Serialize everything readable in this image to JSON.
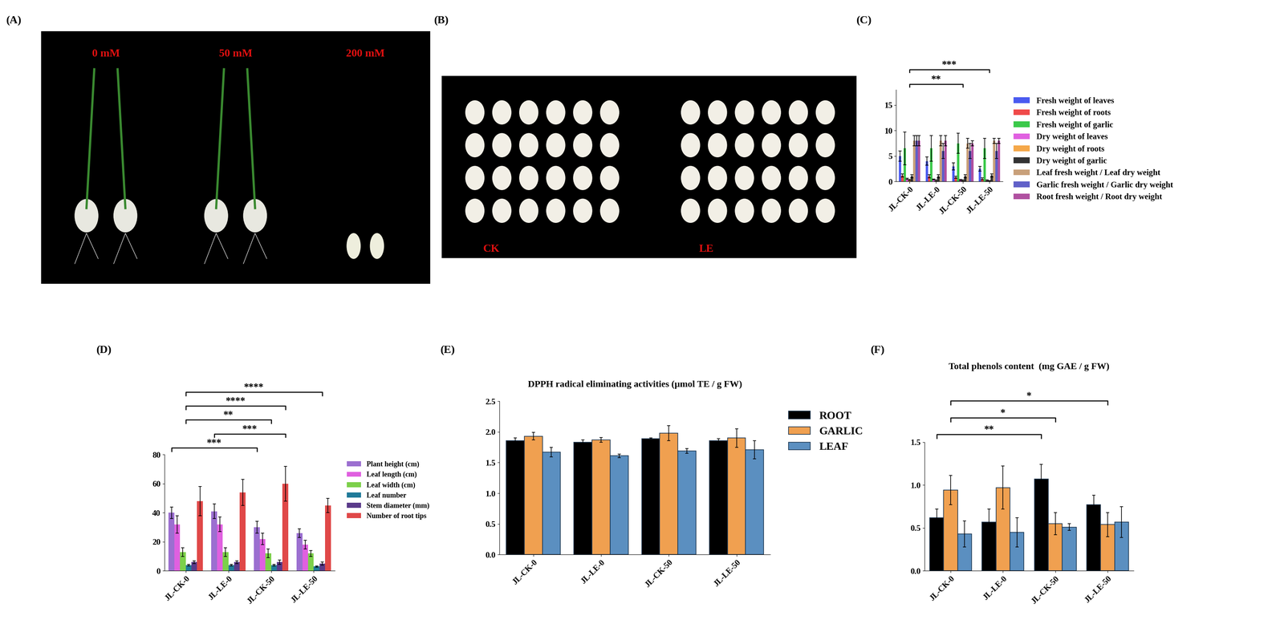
{
  "photos": [
    {
      "panel": "(A)",
      "labels": [
        "0 mM",
        "50 mM",
        "200 mM"
      ]
    },
    {
      "panel": "(B)",
      "labels": [
        "CK",
        "LE"
      ]
    }
  ],
  "chart_data": [
    {
      "panel": "(C)",
      "type": "bar",
      "grid": false,
      "legend": "outside right",
      "categories": [
        "JL-CK-0",
        "JL-LE-0",
        "JL-CK-50",
        "JL-LE-50"
      ],
      "ylim": [
        0,
        18
      ],
      "yticks": [
        0,
        5,
        10,
        15
      ],
      "series": [
        {
          "name": "Fresh weight of leaves",
          "color": "#4b5bf0",
          "values": [
            5,
            4,
            3,
            2.5
          ],
          "errors": [
            1,
            0.8,
            0.7,
            0.5
          ]
        },
        {
          "name": "Fresh weight of roots",
          "color": "#f04a4a",
          "values": [
            1.2,
            1,
            0.8,
            0.5
          ],
          "errors": [
            0.3,
            0.3,
            0.2,
            0.2
          ]
        },
        {
          "name": "Fresh weight of garlic",
          "color": "#3bc94a",
          "values": [
            6.5,
            6.5,
            7.5,
            6.5
          ],
          "errors": [
            3.2,
            2.5,
            2,
            2
          ]
        },
        {
          "name": "Dry weight of leaves",
          "color": "#e060e0",
          "values": [
            0.5,
            0.4,
            0.3,
            0.2
          ],
          "errors": [
            0.1,
            0.1,
            0.1,
            0.1
          ]
        },
        {
          "name": "Dry weight of roots",
          "color": "#f5a84a",
          "values": [
            0.3,
            0.2,
            0.2,
            0.1
          ],
          "errors": [
            0.1,
            0.1,
            0.1,
            0.05
          ]
        },
        {
          "name": "Dry weight of garlic",
          "color": "#333333",
          "values": [
            1,
            1,
            1,
            1.2
          ],
          "errors": [
            0.3,
            0.3,
            0.3,
            0.3
          ]
        },
        {
          "name": "Leaf fresh weight / Leaf dry weight",
          "color": "#c8a07a",
          "values": [
            8,
            8,
            7.5,
            8
          ],
          "errors": [
            1,
            1,
            1,
            0.5
          ]
        },
        {
          "name": "Garlic fresh weight / Garlic dry weight",
          "color": "#6060c8",
          "values": [
            8,
            6,
            6,
            6
          ],
          "errors": [
            1,
            1.5,
            1.5,
            1.5
          ]
        },
        {
          "name": "Root fresh weight / Root dry weight",
          "color": "#b050a0",
          "values": [
            8,
            8,
            7.5,
            8
          ],
          "errors": [
            1,
            1,
            0.5,
            0.5
          ]
        }
      ],
      "significance": [
        {
          "text": "**",
          "from": "JL-CK-0",
          "to": "JL-CK-50"
        },
        {
          "text": "***",
          "from": "JL-CK-0",
          "to": "JL-LE-50"
        }
      ]
    },
    {
      "panel": "(D)",
      "type": "bar",
      "grid": false,
      "legend": "outside right",
      "categories": [
        "JL-CK-0",
        "JL-LE-0",
        "JL-CK-50",
        "JL-LE-50"
      ],
      "ylim": [
        0,
        80
      ],
      "yticks": [
        0,
        20,
        40,
        60,
        80
      ],
      "series": [
        {
          "name": "Plant height (cm)",
          "color": "#9b6fd0",
          "values": [
            40,
            41,
            30,
            26
          ],
          "errors": [
            4,
            5,
            4,
            3
          ]
        },
        {
          "name": "Leaf length (cm)",
          "color": "#e060e0",
          "values": [
            32,
            32,
            22,
            18
          ],
          "errors": [
            6,
            5,
            4,
            3
          ]
        },
        {
          "name": "Leaf width (cm)",
          "color": "#7cd04a",
          "values": [
            13,
            13,
            12,
            12
          ],
          "errors": [
            3,
            3,
            3,
            2
          ]
        },
        {
          "name": "Leaf number",
          "color": "#1f7a99",
          "values": [
            4,
            4,
            4,
            3
          ],
          "errors": [
            0.5,
            0.5,
            0.5,
            0.5
          ]
        },
        {
          "name": "Stem diameter (mm)",
          "color": "#5a3a8a",
          "values": [
            6,
            6,
            6,
            5
          ],
          "errors": [
            1,
            1,
            1.5,
            1
          ]
        },
        {
          "name": "Number of root tips",
          "color": "#e04848",
          "values": [
            48,
            54,
            60,
            45
          ],
          "errors": [
            10,
            9,
            12,
            5
          ]
        }
      ],
      "significance": [
        {
          "text": "***",
          "from": "JL-CK-0",
          "from_series": "Plant height (cm)",
          "to": "JL-CK-50",
          "to_series": "Plant height (cm)"
        },
        {
          "text": "***",
          "from": "JL-LE-0",
          "from_series": "Plant height (cm)",
          "to": "JL-CK-50",
          "to_series": "Number of root tips"
        },
        {
          "text": "**",
          "from": "JL-CK-0",
          "to": "JL-CK-50"
        },
        {
          "text": "****",
          "from": "JL-CK-0",
          "to": "JL-CK-50",
          "to_series": "Number of root tips"
        },
        {
          "text": "****",
          "from": "JL-CK-0",
          "to": "JL-LE-50",
          "to_series": "Stem diameter (mm)"
        }
      ]
    },
    {
      "panel": "(E)",
      "type": "bar",
      "grid": false,
      "legend": "outside right",
      "title": "DPPH radical eliminating activities (μmol TE / g FW)",
      "categories": [
        "JL-CK-0",
        "JL-LE-0",
        "JL-CK-50",
        "JL-LE-50"
      ],
      "ylim": [
        0,
        2.5
      ],
      "yticks": [
        {
          "value": 0,
          "label": "0.0"
        },
        {
          "value": 0.5,
          "label": "0.5"
        },
        {
          "value": 1,
          "label": "1.0"
        },
        {
          "value": 1.5,
          "label": "1.5"
        },
        {
          "value": 2,
          "label": "2.0"
        },
        {
          "value": 2.5,
          "label": "2.5"
        }
      ],
      "series": [
        {
          "name": "ROOT",
          "color": "#000000",
          "values": [
            1.86,
            1.83,
            1.89,
            1.86
          ],
          "errors": [
            0.04,
            0.04,
            0.01,
            0.03
          ]
        },
        {
          "name": "GARLIC",
          "color": "#f0a050",
          "values": [
            1.93,
            1.87,
            1.98,
            1.9
          ],
          "errors": [
            0.06,
            0.04,
            0.12,
            0.15
          ]
        },
        {
          "name": "LEAF",
          "color": "#5b8fc0",
          "values": [
            1.67,
            1.61,
            1.69,
            1.71
          ],
          "errors": [
            0.08,
            0.03,
            0.04,
            0.15
          ]
        }
      ],
      "significance": []
    },
    {
      "panel": "(F)",
      "type": "bar",
      "grid": false,
      "title": "Total phenols content  (mg GAE / g FW)",
      "categories": [
        "JL-CK-0",
        "JL-LE-0",
        "JL-CK-50",
        "JL-LE-50"
      ],
      "ylim": [
        0,
        1.5
      ],
      "yticks": [
        {
          "value": 0,
          "label": "0.0"
        },
        {
          "value": 0.5,
          "label": "0.5"
        },
        {
          "value": 1,
          "label": "1.0"
        },
        {
          "value": 1.5,
          "label": "1.5"
        }
      ],
      "series": [
        {
          "name": "ROOT",
          "color": "#000000",
          "values": [
            0.62,
            0.57,
            1.07,
            0.77
          ],
          "errors": [
            0.1,
            0.15,
            0.17,
            0.11
          ]
        },
        {
          "name": "GARLIC",
          "color": "#f0a050",
          "values": [
            0.94,
            0.97,
            0.55,
            0.54
          ],
          "errors": [
            0.17,
            0.25,
            0.13,
            0.14
          ]
        },
        {
          "name": "LEAF",
          "color": "#5b8fc0",
          "values": [
            0.43,
            0.45,
            0.51,
            0.57
          ],
          "errors": [
            0.15,
            0.17,
            0.04,
            0.18
          ]
        }
      ],
      "significance": [
        {
          "text": "**",
          "from": "JL-CK-0",
          "from_series": "ROOT",
          "to": "JL-CK-50",
          "to_series": "ROOT"
        },
        {
          "text": "*",
          "from": "JL-CK-0",
          "from_series": "GARLIC",
          "to": "JL-CK-50",
          "to_series": "GARLIC"
        },
        {
          "text": "*",
          "from": "JL-CK-0",
          "from_series": "GARLIC",
          "to": "JL-LE-50",
          "to_series": "GARLIC"
        }
      ]
    }
  ]
}
